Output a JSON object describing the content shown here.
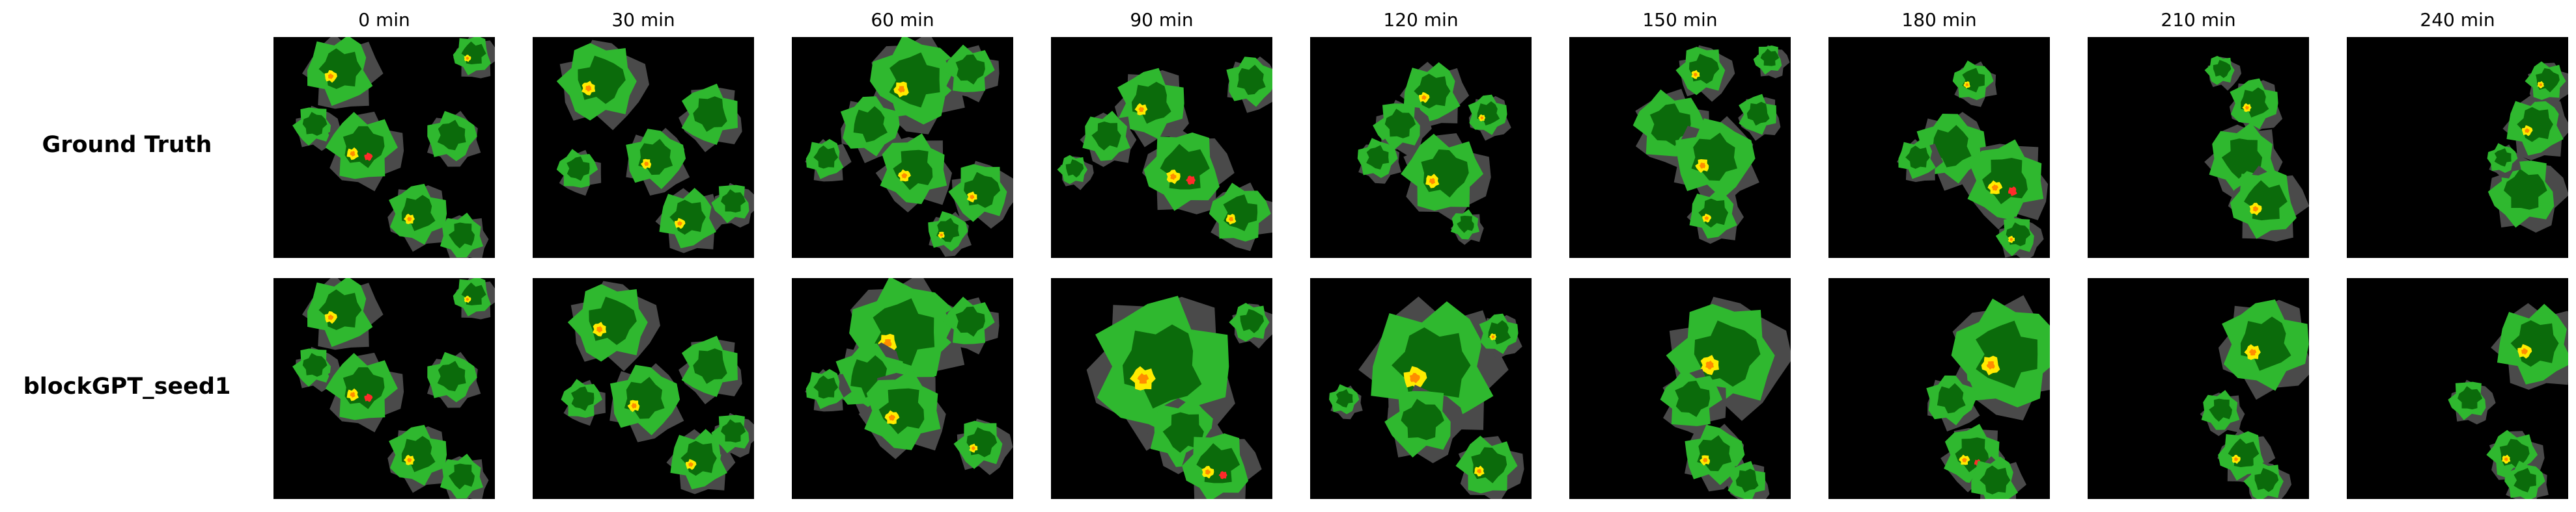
{
  "column_titles": [
    "0 min",
    "30 min",
    "60 min",
    "90 min",
    "120 min",
    "150 min",
    "180 min",
    "210 min",
    "240 min"
  ],
  "row_labels": [
    "Ground Truth",
    "blockGPT_seed1"
  ],
  "colors": {
    "background": "#000000",
    "low": "#4a4a4a",
    "light_green": "#2fb82f",
    "dark_green": "#0b6b0b",
    "yellow": "#ffeb00",
    "orange": "#ff8c00",
    "red": "#ff2a2a",
    "magenta": "#ff2fa0"
  }
}
